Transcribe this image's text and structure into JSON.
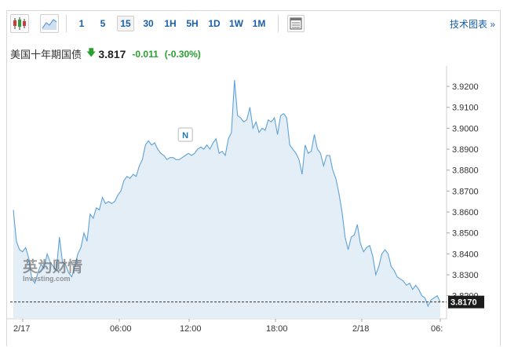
{
  "toolbar": {
    "timeframes": [
      "1",
      "5",
      "15",
      "30",
      "1H",
      "5H",
      "1D",
      "1W",
      "1M"
    ],
    "active_timeframe": "15",
    "advanced_chart_label": "技术图表 »",
    "icons": [
      "candlestick-icon",
      "area-chart-icon",
      "table-icon"
    ]
  },
  "quote": {
    "name": "美国十年期国债",
    "direction": "down-arrow-icon",
    "price": "3.817",
    "change": "-0.011",
    "change_percent": "(-0.30%)",
    "change_color": "#27a12e"
  },
  "watermark": {
    "line1": "英为财情",
    "line2": "Investing.com"
  },
  "news_marker": "N",
  "current_price_label": "3.8170",
  "colors": {
    "line": "#5ea2d6",
    "fill": "#e4eef7",
    "price_label_bg": "#1c1c1c"
  },
  "chart_data": {
    "type": "area",
    "title": "",
    "xlabel": "",
    "ylabel": "",
    "x_ticks": [
      "2/17",
      "06:00",
      "12:00",
      "18:00",
      "2/18",
      "06:"
    ],
    "y_ticks": [
      "3.9200",
      "3.9100",
      "3.9000",
      "3.8900",
      "3.8800",
      "3.8700",
      "3.8600",
      "3.8500",
      "3.8400",
      "3.8300",
      "3.8200"
    ],
    "ylim": [
      3.8135,
      3.926
    ],
    "grid": false,
    "last_value": 3.817,
    "series": [
      {
        "values": [
          3.861,
          3.846,
          3.842,
          3.841,
          3.843,
          3.838,
          3.828,
          3.826,
          3.831,
          3.835,
          3.833,
          3.84,
          3.836,
          3.834,
          3.832,
          3.848,
          3.836,
          3.835,
          3.831,
          3.829,
          3.834,
          3.84,
          3.843,
          3.85,
          3.846,
          3.859,
          3.857,
          3.862,
          3.861,
          3.867,
          3.864,
          3.865,
          3.864,
          3.865,
          3.868,
          3.87,
          3.875,
          3.877,
          3.876,
          3.878,
          3.877,
          3.882,
          3.885,
          3.892,
          3.894,
          3.892,
          3.893,
          3.89,
          3.888,
          3.887,
          3.885,
          3.886,
          3.886,
          3.885,
          3.885,
          3.886,
          3.887,
          3.888,
          3.887,
          3.888,
          3.89,
          3.891,
          3.89,
          3.892,
          3.89,
          3.893,
          3.895,
          3.888,
          3.889,
          3.887,
          3.895,
          3.898,
          3.923,
          3.906,
          3.905,
          3.903,
          3.904,
          3.91,
          3.9,
          3.903,
          3.898,
          3.9,
          3.899,
          3.904,
          3.903,
          3.905,
          3.897,
          3.906,
          3.907,
          3.905,
          3.892,
          3.89,
          3.888,
          3.885,
          3.878,
          3.892,
          3.888,
          3.889,
          3.897,
          3.89,
          3.888,
          3.882,
          3.887,
          3.887,
          3.88,
          3.876,
          3.869,
          3.86,
          3.848,
          3.842,
          3.848,
          3.849,
          3.854,
          3.845,
          3.841,
          3.843,
          3.844,
          3.839,
          3.83,
          3.834,
          3.84,
          3.842,
          3.84,
          3.834,
          3.832,
          3.829,
          3.828,
          3.827,
          3.825,
          3.826,
          3.823,
          3.825,
          3.823,
          3.82,
          3.819,
          3.815,
          3.818,
          3.819,
          3.82,
          3.817
        ]
      }
    ]
  }
}
